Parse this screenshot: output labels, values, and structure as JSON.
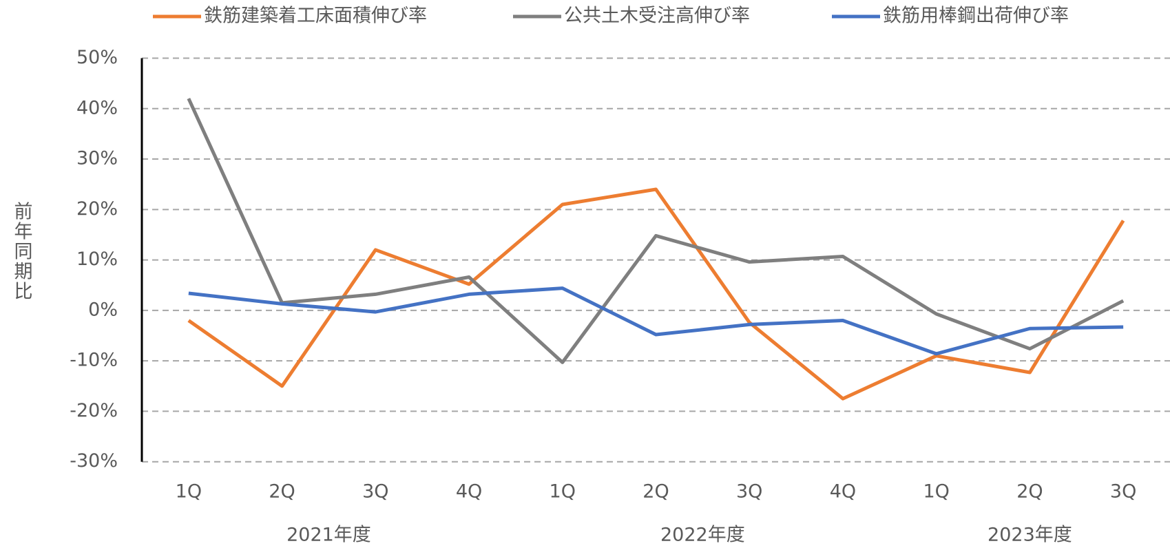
{
  "chart_data": {
    "type": "line",
    "y_label": "前年同期比",
    "categories": [
      "1Q",
      "2Q",
      "3Q",
      "4Q",
      "1Q",
      "2Q",
      "3Q",
      "4Q",
      "1Q",
      "2Q",
      "3Q"
    ],
    "groups": [
      {
        "label": "2021年度",
        "size": 4
      },
      {
        "label": "2022年度",
        "size": 4
      },
      {
        "label": "2023年度",
        "size": 3
      }
    ],
    "series": [
      {
        "name": "鉄筋建築着工床面積伸び率",
        "color": "#ed7d31",
        "values": [
          -2,
          -15,
          12,
          5.2,
          21,
          24,
          -2.4,
          -17.5,
          -9,
          -12.3,
          17.8
        ]
      },
      {
        "name": "公共土木受注高伸び率",
        "color": "#7f7f7f",
        "values": [
          42,
          1.5,
          3.2,
          6.6,
          -10.3,
          14.8,
          9.6,
          10.7,
          -0.7,
          -7.6,
          1.9
        ]
      },
      {
        "name": "鉄筋用棒鋼出荷伸び率",
        "color": "#4472c4",
        "values": [
          3.4,
          1.3,
          -0.3,
          3.2,
          4.4,
          -4.8,
          -2.8,
          -2,
          -8.6,
          -3.6,
          -3.3
        ]
      }
    ],
    "ylim": [
      -30,
      50
    ],
    "yticks": [
      {
        "value": -30,
        "label": "-30%"
      },
      {
        "value": -20,
        "label": "-20%"
      },
      {
        "value": -10,
        "label": "-10%"
      },
      {
        "value": 0,
        "label": "0%"
      },
      {
        "value": 10,
        "label": "10%"
      },
      {
        "value": 20,
        "label": "20%"
      },
      {
        "value": 30,
        "label": "30%"
      },
      {
        "value": 40,
        "label": "40%"
      },
      {
        "value": 50,
        "label": "50%"
      }
    ],
    "grid": true,
    "legend": "top"
  }
}
